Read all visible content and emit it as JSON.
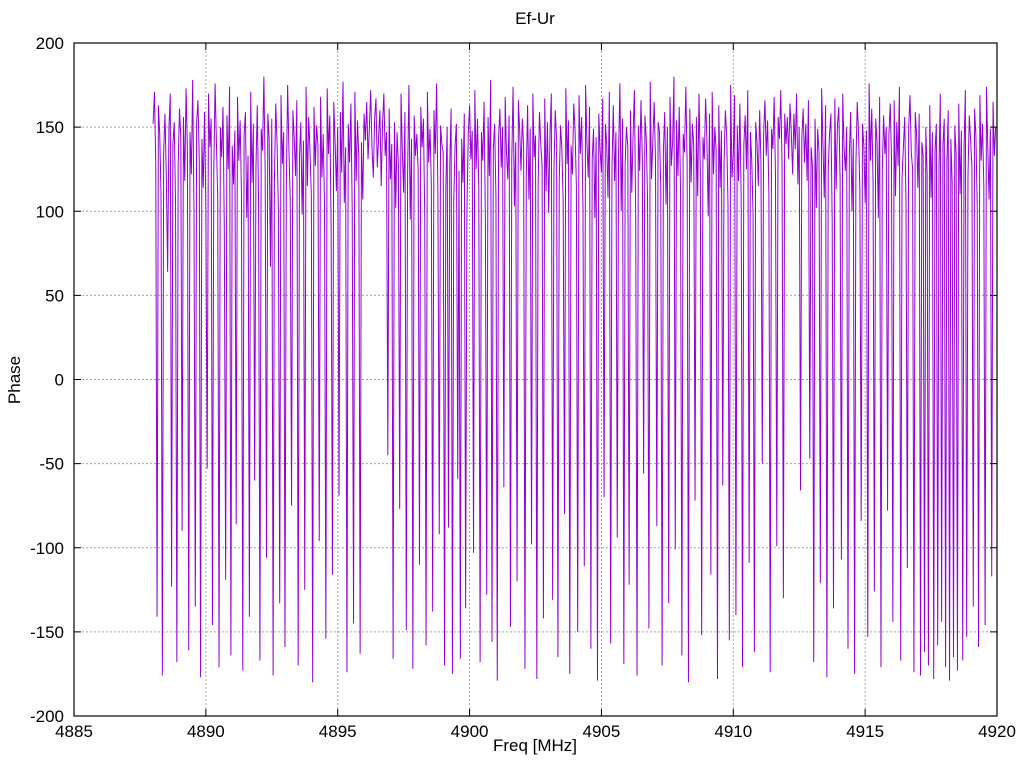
{
  "page": {
    "background": "#ffffff"
  },
  "chart_data": {
    "type": "line",
    "title": "Ef-Ur",
    "xlabel": "Freq [MHz]",
    "ylabel": "Phase",
    "xlim": [
      4885,
      4920
    ],
    "ylim": [
      -200,
      200
    ],
    "xticks": [
      4885,
      4890,
      4895,
      4900,
      4905,
      4910,
      4915,
      4920
    ],
    "yticks": [
      -200,
      -150,
      -100,
      -50,
      0,
      50,
      100,
      150,
      200
    ],
    "grid": true,
    "legend": "none",
    "line_color": "#9400D3",
    "grid_color": "#a6a6a6",
    "border_color": "#000000",
    "series": [
      {
        "name": "Ef-Ur phase",
        "x_start": 4888.0,
        "x_step": 0.05,
        "y": [
          152,
          171,
          128,
          -141,
          163,
          146,
          110,
          -176,
          135,
          158,
          121,
          64,
          149,
          170,
          -123,
          140,
          153,
          106,
          -168,
          127,
          161,
          144,
          -90,
          156,
          118,
          173,
          136,
          -161,
          147,
          122,
          178,
          99,
          -135,
          153,
          166,
          131,
          -177,
          143,
          114,
          159,
          102,
          -53,
          170,
          138,
          155,
          -146,
          123,
          176,
          141,
          108,
          -171,
          150,
          132,
          162,
          89,
          -119,
          157,
          125,
          174,
          -164,
          139,
          116,
          148,
          -86,
          168,
          130,
          154,
          110,
          -173,
          145,
          159,
          96,
          133,
          -141,
          171,
          117,
          152,
          -60,
          126,
          163,
          104,
          -167,
          149,
          136,
          180,
          122,
          -106,
          158,
          143,
          67,
          155,
          -176,
          119,
          164,
          140,
          101,
          -133,
          169,
          128,
          147,
          -159,
          113,
          175,
          137,
          106,
          -75,
          160,
          144,
          121,
          166,
          -170,
          132,
          153,
          98,
          142,
          -125,
          174,
          115,
          156,
          135,
          109,
          -180,
          162,
          127,
          151,
          139,
          -96,
          168,
          120,
          146,
          103,
          -154,
          173,
          134,
          157,
          91,
          -116,
          165,
          142,
          112,
          150,
          -69,
          159,
          123,
          177,
          105,
          138,
          -174,
          152,
          129,
          164,
          100,
          -145,
          171,
          118,
          154,
          132,
          -163,
          141,
          107,
          158,
          142,
          165,
          131,
          149,
          172,
          138,
          120,
          155,
          167,
          126,
          144,
          160,
          115,
          152,
          170,
          133,
          147,
          -45,
          161,
          119,
          140,
          -166,
          153,
          102,
          147,
          128,
          -77,
          170,
          136,
          111,
          159,
          -149,
          122,
          175,
          95,
          143,
          -172,
          157,
          133,
          146,
          124,
          -110,
          162,
          138,
          155,
          97,
          -158,
          171,
          129,
          149,
          116,
          -138,
          160,
          134,
          176,
          108,
          -92,
          151,
          140,
          135,
          -170,
          114,
          150,
          -88,
          128,
          161,
          -175,
          106,
          139,
          152,
          -59,
          124,
          -166,
          143,
          117,
          158,
          -136,
          101,
          146,
          163,
          131,
          148,
          -103,
          172,
          125,
          155,
          113,
          -168,
          147,
          130,
          165,
          94,
          -128,
          156,
          121,
          178,
          -156,
          137,
          152,
          109,
          -179,
          144,
          161,
          126,
          150,
          -64,
          168,
          135,
          119,
          157,
          -147,
          130,
          174,
          103,
          141,
          -120,
          166,
          148,
          124,
          155,
          138,
          -172,
          121,
          163,
          107,
          149,
          -98,
          170,
          132,
          145,
          -178,
          116,
          159,
          140,
          127,
          -142,
          167,
          112,
          153,
          99,
          146,
          170,
          -131,
          125,
          160,
          143,
          -165,
          118,
          151,
          137,
          105,
          -80,
          173,
          128,
          154,
          -175,
          139,
          122,
          164,
          148,
          115,
          -150,
          169,
          134,
          156,
          102,
          -111,
          175,
          141,
          120,
          162,
          -160,
          131,
          149,
          96,
          144,
          -179,
          158,
          136,
          123,
          167,
          -70,
          152,
          140,
          108,
          171,
          -157,
          126,
          163,
          118,
          147,
          -94,
          134,
          176,
          100,
          155,
          -169,
          129,
          150,
          138,
          -122,
          160,
          111,
          145,
          172,
          98,
          -176,
          151,
          124,
          166,
          132,
          -56,
          157,
          143,
          106,
          -148,
          177,
          119,
          142,
          165,
          130,
          -87,
          153,
          147,
          115,
          -170,
          136,
          159,
          104,
          150,
          -133,
          168,
          127,
          141,
          180,
          -101,
          154,
          121,
          162,
          112,
          -164,
          146,
          135,
          174,
          128,
          -180,
          161,
          117,
          152,
          139,
          -72,
          156,
          109,
          170,
          124,
          -152,
          144,
          131,
          167,
          142,
          97,
          158,
          -116,
          171,
          122,
          150,
          136,
          -178,
          163,
          114,
          148,
          -63,
          129,
          160,
          145,
          103,
          -155,
          175,
          120,
          134,
          169,
          -140,
          151,
          118,
          164,
          106,
          -171,
          139,
          157,
          125,
          172,
          -109,
          147,
          130,
          98,
          -162,
          153,
          141,
          115,
          160,
          128,
          -50,
          145,
          166,
          133,
          154,
          110,
          -174,
          149,
          137,
          168,
          121,
          -99,
          156,
          143,
          172,
          126,
          -130,
          158,
          140,
          156,
          131,
          164,
          147,
          122,
          158,
          137,
          170,
          116,
          150,
          -66,
          144,
          161,
          129,
          152,
          118,
          166,
          -47,
          138,
          127,
          -168,
          155,
          102,
          149,
          135,
          -121,
          173,
          140,
          108,
          163,
          -177,
          125,
          146,
          158,
          95,
          -136,
          167,
          113,
          151,
          162,
          119,
          -107,
          170,
          138,
          124,
          150,
          -160,
          133,
          159,
          100,
          143,
          -175,
          128,
          165,
          146,
          112,
          -84,
          152,
          139,
          105,
          148,
          -153,
          176,
          130,
          161,
          117,
          -126,
          155,
          142,
          96,
          168,
          -171,
          123,
          157,
          134,
          150,
          -78,
          145,
          164,
          131,
          -144,
          166,
          109,
          153,
          127,
          174,
          -167,
          120,
          138,
          156,
          104,
          -112,
          149,
          169,
          135,
          125,
          -174,
          159,
          146,
          114,
          158,
          -176,
          141,
          133,
          -162,
          150,
          122,
          -170,
          163,
          108,
          147,
          -178,
          136,
          152,
          -158,
          125,
          170,
          -144,
          139,
          155,
          -171,
          129,
          160,
          -179,
          143,
          117,
          -165,
          151,
          134,
          -173,
          164,
          110,
          148,
          -167,
          137,
          172,
          -153,
          121,
          157,
          142,
          126,
          -135,
          161,
          145,
          103,
          -159,
          169,
          130,
          152,
          115,
          -146,
          174,
          138,
          107,
          149,
          -117,
          165,
          133,
          150
        ]
      }
    ]
  }
}
